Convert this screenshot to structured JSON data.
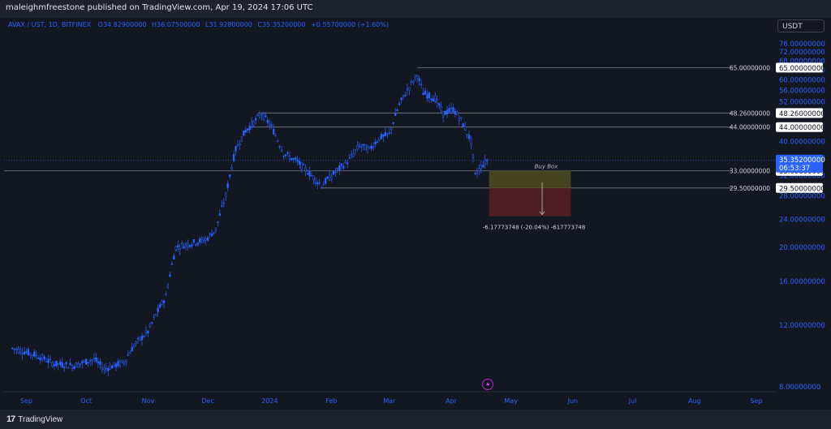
{
  "header": {
    "publish_text": "maleighmfreestone published on TradingView.com, Apr 19, 2024 17:06 UTC"
  },
  "legend": {
    "symbol": "AVAX / UST, 1D, BITFINEX",
    "open": "O34.82900000",
    "high": "H36.07500000",
    "low": "L31.92800000",
    "close": "C35.35200000",
    "change": "+0.55700000 (+1.60%)"
  },
  "currency_button": "USDT",
  "footer": {
    "brand": "TradingView"
  },
  "colors": {
    "background": "#131722",
    "candle": "#2962ff",
    "axis_text": "#2962ff",
    "hline": "#787b86",
    "buy_box_top": "#4e4c1f",
    "buy_box_bottom": "#5a1f26",
    "price_tag": "#2962ff"
  },
  "chart_data": {
    "type": "candlestick",
    "title": "AVAX / UST, 1D, BITFINEX",
    "x_ticks": [
      "Sep",
      "Oct",
      "Nov",
      "Dec",
      "2024",
      "Feb",
      "Mar",
      "Apr",
      "May",
      "Jun",
      "Jul",
      "Aug",
      "Sep"
    ],
    "y_ticks": [
      "76.00000000",
      "72.00000000",
      "68.00000000",
      "64.00000000",
      "60.00000000",
      "56.00000000",
      "52.00000000",
      "48.00000000",
      "44.00000000",
      "40.00000000",
      "36.00000000",
      "32.00000000",
      "28.00000000",
      "24.00000000",
      "20.00000000",
      "16.00000000",
      "12.00000000",
      "8.00000000"
    ],
    "y_range": [
      8,
      78
    ],
    "log_scale": true,
    "series_points": [
      [
        "2023-08-25",
        10.3
      ],
      [
        "2023-09-05",
        9.9
      ],
      [
        "2023-09-15",
        9.3
      ],
      [
        "2023-09-25",
        9.2
      ],
      [
        "2023-10-05",
        9.6
      ],
      [
        "2023-10-10",
        9.0
      ],
      [
        "2023-10-20",
        9.4
      ],
      [
        "2023-10-25",
        10.5
      ],
      [
        "2023-11-01",
        11.5
      ],
      [
        "2023-11-10",
        14.5
      ],
      [
        "2023-11-15",
        20.0
      ],
      [
        "2023-11-22",
        20.5
      ],
      [
        "2023-11-30",
        21.0
      ],
      [
        "2023-12-05",
        22.5
      ],
      [
        "2023-12-10",
        28.0
      ],
      [
        "2023-12-15",
        38.0
      ],
      [
        "2023-12-20",
        43.0
      ],
      [
        "2023-12-25",
        46.0
      ],
      [
        "2023-12-28",
        48.0
      ],
      [
        "2024-01-02",
        44.0
      ],
      [
        "2024-01-08",
        37.0
      ],
      [
        "2024-01-15",
        35.0
      ],
      [
        "2024-01-22",
        32.0
      ],
      [
        "2024-01-27",
        30.0
      ],
      [
        "2024-02-05",
        33.5
      ],
      [
        "2024-02-10",
        35.5
      ],
      [
        "2024-02-15",
        39.0
      ],
      [
        "2024-02-20",
        38.0
      ],
      [
        "2024-02-25",
        41.0
      ],
      [
        "2024-03-01",
        42.0
      ],
      [
        "2024-03-06",
        51.0
      ],
      [
        "2024-03-10",
        56.0
      ],
      [
        "2024-03-15",
        62.0
      ],
      [
        "2024-03-18",
        55.0
      ],
      [
        "2024-03-24",
        53.0
      ],
      [
        "2024-03-28",
        48.0
      ],
      [
        "2024-04-02",
        49.5
      ],
      [
        "2024-04-06",
        46.0
      ],
      [
        "2024-04-11",
        40.0
      ],
      [
        "2024-04-13",
        32.0
      ],
      [
        "2024-04-16",
        34.0
      ],
      [
        "2024-04-19",
        35.35
      ]
    ],
    "horizontal_levels": [
      {
        "value": 65,
        "label": "65.00000000"
      },
      {
        "value": 48.26,
        "label": "48.26000000"
      },
      {
        "value": 44,
        "label": "44.00000000"
      },
      {
        "value": 33,
        "label": "33.00000000"
      },
      {
        "value": 29.5,
        "label": "29.50000000"
      }
    ],
    "last_price": {
      "value": 35.352,
      "label": "35.35200000",
      "countdown": "06:53:37"
    },
    "buy_box": {
      "label": "Buy Box",
      "top": 33,
      "mid": 29.5,
      "bottom": 24.5,
      "start": "2024-04-20",
      "end": "2024-05-31"
    },
    "measure_text": "-6.17773748 (-20.04%) -617773748",
    "event_icon": "lightning-icon"
  }
}
